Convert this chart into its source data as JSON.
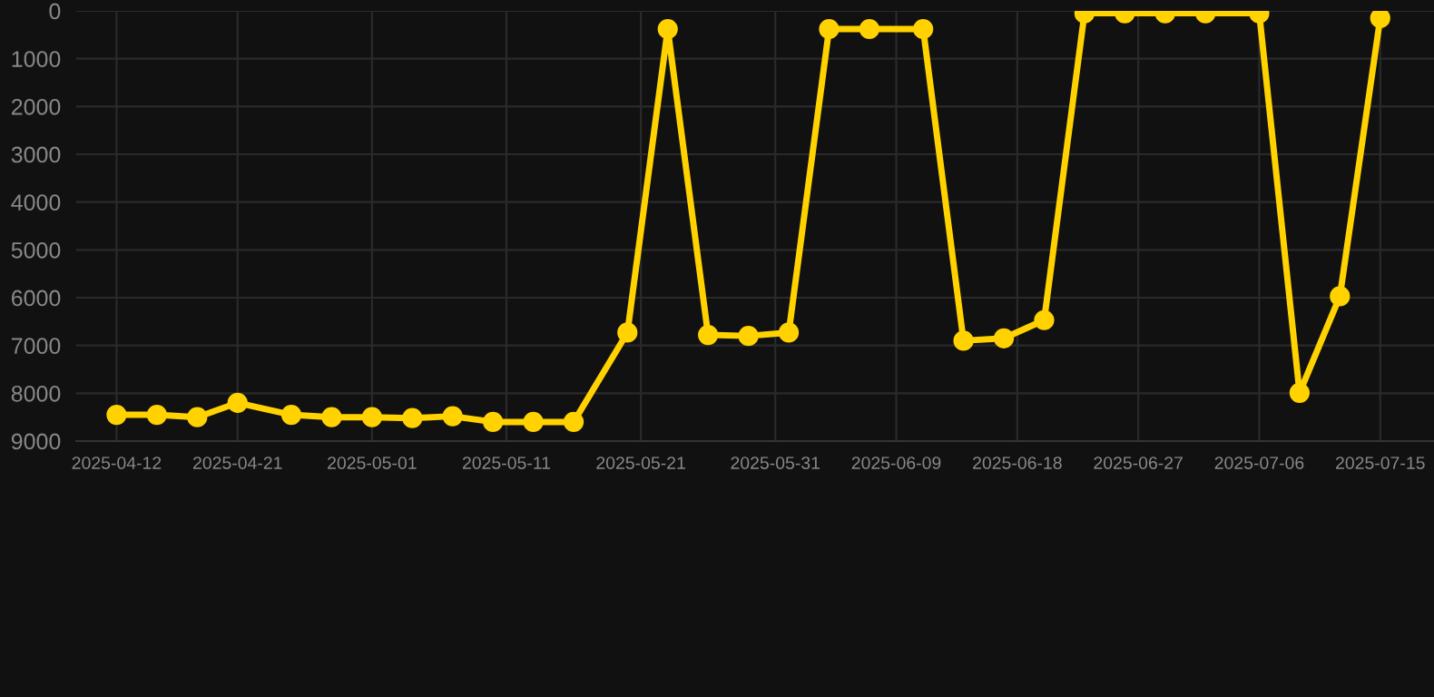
{
  "chart_data": {
    "type": "line",
    "x": [
      "2025-04-12",
      "2025-04-15",
      "2025-04-18",
      "2025-04-21",
      "2025-04-25",
      "2025-04-28",
      "2025-05-01",
      "2025-05-04",
      "2025-05-07",
      "2025-05-10",
      "2025-05-13",
      "2025-05-16",
      "2025-05-20",
      "2025-05-23",
      "2025-05-26",
      "2025-05-29",
      "2025-06-01",
      "2025-06-04",
      "2025-06-07",
      "2025-06-11",
      "2025-06-14",
      "2025-06-17",
      "2025-06-20",
      "2025-06-23",
      "2025-06-26",
      "2025-06-29",
      "2025-07-02",
      "2025-07-06",
      "2025-07-09",
      "2025-07-12",
      "2025-07-15"
    ],
    "series": [
      {
        "color": "#ffd200",
        "values": [
          8450,
          8450,
          8500,
          8200,
          8450,
          8500,
          8500,
          8520,
          8480,
          8600,
          8600,
          8600,
          6730,
          380,
          6780,
          6800,
          6730,
          380,
          380,
          380,
          6900,
          6850,
          6470,
          50,
          50,
          50,
          50,
          50,
          7990,
          5970,
          150
        ]
      }
    ],
    "xlim": [
      "2025-04-09",
      "2025-07-19"
    ],
    "xticks": [
      "2025-04-12",
      "2025-04-21",
      "2025-05-01",
      "2025-05-11",
      "2025-05-21",
      "2025-05-31",
      "2025-06-09",
      "2025-06-18",
      "2025-06-27",
      "2025-07-06",
      "2025-07-15"
    ],
    "ylim": [
      9000,
      0
    ],
    "yticks": [
      0,
      1000,
      2000,
      3000,
      4000,
      5000,
      6000,
      7000,
      8000,
      9000
    ],
    "grid": true,
    "marker": "circle",
    "line_style": "solid"
  }
}
